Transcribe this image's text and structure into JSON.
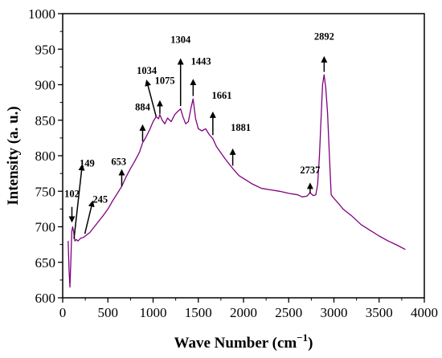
{
  "chart_data": {
    "type": "line",
    "xlabel": "Wave Number (cm",
    "xlabel_sup": "−1",
    "xlabel_close": ")",
    "ylabel": "Intensity (a. u.)",
    "xlim": [
      0,
      4000
    ],
    "ylim": [
      600,
      1000
    ],
    "xticks": [
      0,
      500,
      1000,
      1500,
      2000,
      2500,
      3000,
      3500,
      4000
    ],
    "yticks": [
      600,
      650,
      700,
      750,
      800,
      850,
      900,
      950,
      1000
    ],
    "grid": false,
    "line_color": "#800080",
    "series": [
      {
        "x": [
          60,
          70,
          80,
          90,
          100,
          110,
          120,
          135,
          150,
          170,
          200,
          230,
          260,
          300,
          350,
          400,
          450,
          500,
          550,
          600,
          653,
          700,
          750,
          800,
          850,
          884,
          920,
          960,
          1000,
          1034,
          1060,
          1075,
          1100,
          1130,
          1160,
          1200,
          1240,
          1270,
          1304,
          1330,
          1360,
          1390,
          1420,
          1443,
          1470,
          1500,
          1540,
          1580,
          1620,
          1661,
          1700,
          1750,
          1800,
          1850,
          1881,
          1950,
          2000,
          2100,
          2200,
          2300,
          2400,
          2500,
          2600,
          2650,
          2700,
          2737,
          2770,
          2800,
          2820,
          2840,
          2860,
          2875,
          2892,
          2910,
          2930,
          2950,
          2970,
          3000,
          3050,
          3100,
          3200,
          3300,
          3400,
          3500,
          3600,
          3700,
          3790
        ],
        "y": [
          680,
          640,
          615,
          650,
          693,
          700,
          694,
          680,
          682,
          680,
          684,
          685,
          688,
          692,
          700,
          708,
          716,
          725,
          736,
          746,
          757,
          770,
          782,
          793,
          805,
          818,
          826,
          836,
          848,
          855,
          852,
          858,
          850,
          845,
          853,
          848,
          858,
          862,
          866,
          855,
          845,
          848,
          868,
          880,
          852,
          838,
          835,
          838,
          830,
          824,
          813,
          804,
          795,
          787,
          782,
          772,
          768,
          760,
          754,
          752,
          750,
          747,
          745,
          742,
          743,
          748,
          744,
          745,
          760,
          800,
          860,
          900,
          914,
          895,
          860,
          800,
          745,
          740,
          733,
          725,
          715,
          703,
          695,
          687,
          680,
          674,
          668
        ]
      }
    ],
    "annotations": [
      {
        "label": "102",
        "tip": [
          102,
          708
        ],
        "tail": [
          102,
          728
        ],
        "text_at": [
          102,
          742
        ]
      },
      {
        "label": "149",
        "tip": [
          215,
          786
        ],
        "tail": [
          125,
          683
        ],
        "text_at": [
          270,
          785
        ]
      },
      {
        "label": "245",
        "tip": [
          330,
          735
        ],
        "tail": [
          245,
          690
        ],
        "text_at": [
          415,
          734
        ]
      },
      {
        "label": "653",
        "tip": [
          653,
          779
        ],
        "tail": [
          653,
          757
        ],
        "text_at": [
          620,
          787
        ]
      },
      {
        "label": "884",
        "tip": [
          884,
          842
        ],
        "tail": [
          884,
          820
        ],
        "text_at": [
          884,
          864
        ]
      },
      {
        "label": "1034",
        "tip": [
          930,
          905
        ],
        "tail": [
          1034,
          855
        ],
        "text_at": [
          930,
          915
        ]
      },
      {
        "label": "1075",
        "tip": [
          1075,
          876
        ],
        "tail": [
          1075,
          859
        ],
        "text_at": [
          1130,
          901
        ]
      },
      {
        "label": "1304",
        "tip": [
          1304,
          935
        ],
        "tail": [
          1304,
          870
        ],
        "text_at": [
          1304,
          959
        ]
      },
      {
        "label": "1443",
        "tip": [
          1443,
          906
        ],
        "tail": [
          1443,
          884
        ],
        "text_at": [
          1530,
          928
        ]
      },
      {
        "label": "1661",
        "tip": [
          1661,
          860
        ],
        "tail": [
          1661,
          829
        ],
        "text_at": [
          1760,
          880
        ]
      },
      {
        "label": "1881",
        "tip": [
          1881,
          808
        ],
        "tail": [
          1881,
          786
        ],
        "text_at": [
          1970,
          835
        ]
      },
      {
        "label": "2737",
        "tip": [
          2737,
          760
        ],
        "tail": [
          2737,
          747
        ],
        "text_at": [
          2737,
          775
        ]
      },
      {
        "label": "2892",
        "tip": [
          2892,
          938
        ],
        "tail": [
          2892,
          918
        ],
        "text_at": [
          2892,
          963
        ]
      }
    ]
  }
}
